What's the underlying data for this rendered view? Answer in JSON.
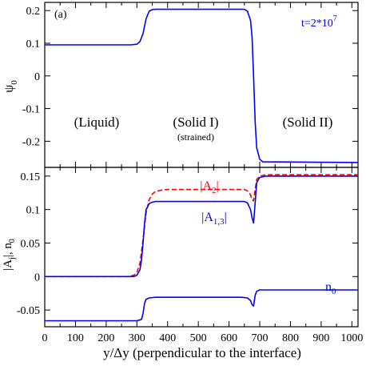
{
  "chart_data": [
    {
      "type": "line",
      "panel_label": "(a)",
      "ylabel_main": "ψ",
      "ylabel_sub": "0",
      "ylim": [
        -0.28,
        0.225
      ],
      "yticks": [
        -0.2,
        -0.1,
        0,
        0.1,
        0.2
      ],
      "ytick_labels": [
        "-0.2",
        "-0.1",
        "0",
        "0.1",
        "0.2"
      ],
      "xlim": [
        0,
        1020
      ],
      "annotations": {
        "time_prefix": "t=2*10",
        "time_exp": "7",
        "liquid": "(Liquid)",
        "solid1": "(Solid I)",
        "strained": "(strained)",
        "solid2": "(Solid II)"
      },
      "series": [
        {
          "color": "#0000ff",
          "dash": "solid",
          "x": [
            0,
            280,
            300,
            310,
            320,
            330,
            340,
            350,
            360,
            650,
            660,
            670,
            675,
            680,
            685,
            690,
            700,
            710,
            1020
          ],
          "y": [
            0.095,
            0.095,
            0.097,
            0.105,
            0.13,
            0.175,
            0.198,
            0.203,
            0.204,
            0.204,
            0.198,
            0.17,
            0.12,
            0.0,
            -0.14,
            -0.22,
            -0.255,
            -0.263,
            -0.265
          ]
        }
      ]
    },
    {
      "type": "line",
      "ylabel_main": "|A",
      "ylabel_sub": "j",
      "ylabel_tail": "|, n",
      "ylabel_sub2": "0",
      "xlabel": "y/Δy (perpendicular to the interface)",
      "xlim": [
        0,
        1020
      ],
      "ylim": [
        -0.075,
        0.163
      ],
      "xticks": [
        0,
        100,
        200,
        300,
        400,
        500,
        600,
        700,
        800,
        900,
        1000
      ],
      "xtick_labels": [
        "0",
        "100",
        "200",
        "300",
        "400",
        "500",
        "600",
        "700",
        "800",
        "900",
        "1000"
      ],
      "yticks": [
        -0.05,
        0,
        0.05,
        0.1,
        0.15
      ],
      "ytick_labels": [
        "-0.05",
        "0",
        "0.05",
        "0.1",
        "0.15"
      ],
      "labels": {
        "a2_main": "|A",
        "a2_sub": "2",
        "a2_tail": "|",
        "a13_main": "|A",
        "a13_sub": "1,3",
        "a13_tail": "|",
        "n0_main": "n",
        "n0_sub": "0"
      },
      "series": [
        {
          "color": "#ff0000",
          "dash": "dashed",
          "x": [
            0,
            270,
            290,
            300,
            310,
            320,
            330,
            340,
            350,
            360,
            380,
            400,
            650,
            660,
            670,
            675,
            680,
            685,
            690,
            700,
            720,
            1020
          ],
          "y": [
            0,
            0,
            0.002,
            0.006,
            0.02,
            0.055,
            0.095,
            0.115,
            0.123,
            0.127,
            0.129,
            0.13,
            0.13,
            0.128,
            0.122,
            0.115,
            0.113,
            0.13,
            0.145,
            0.15,
            0.152,
            0.152
          ]
        },
        {
          "color": "#0000ff",
          "dash": "solid",
          "x": [
            0,
            290,
            300,
            310,
            315,
            320,
            325,
            330,
            340,
            350,
            360,
            650,
            660,
            670,
            675,
            680,
            685,
            690,
            700,
            720,
            1020
          ],
          "y": [
            0,
            0,
            0.002,
            0.01,
            0.025,
            0.05,
            0.08,
            0.1,
            0.109,
            0.111,
            0.112,
            0.112,
            0.11,
            0.1,
            0.088,
            0.08,
            0.11,
            0.14,
            0.148,
            0.15,
            0.15
          ]
        },
        {
          "color": "#0000ff",
          "dash": "solid",
          "x": [
            0,
            300,
            315,
            320,
            325,
            330,
            340,
            360,
            400,
            640,
            660,
            670,
            675,
            680,
            685,
            690,
            700,
            720,
            1020
          ],
          "y": [
            -0.066,
            -0.066,
            -0.064,
            -0.055,
            -0.04,
            -0.034,
            -0.032,
            -0.031,
            -0.031,
            -0.031,
            -0.032,
            -0.036,
            -0.042,
            -0.044,
            -0.028,
            -0.022,
            -0.02,
            -0.02,
            -0.02
          ]
        }
      ]
    }
  ]
}
